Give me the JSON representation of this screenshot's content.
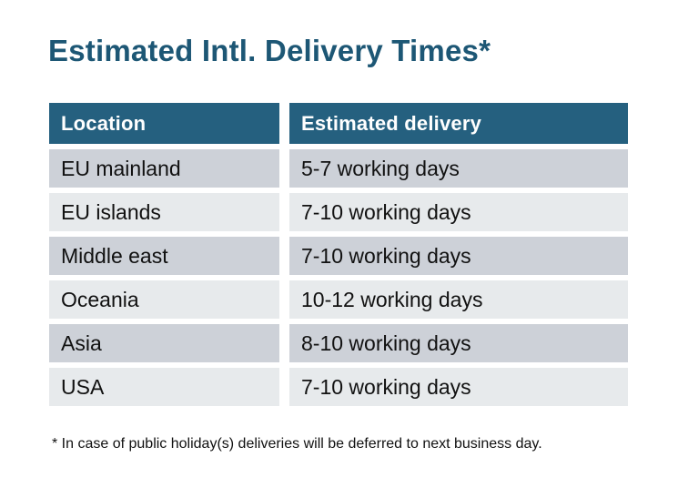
{
  "title": "Estimated Intl. Delivery Times*",
  "table": {
    "headers": [
      "Location",
      "Estimated delivery"
    ],
    "rows": [
      {
        "location": "EU mainland",
        "delivery": "5-7 working days"
      },
      {
        "location": "EU islands",
        "delivery": "7-10 working days"
      },
      {
        "location": "Middle east",
        "delivery": "7-10 working days"
      },
      {
        "location": "Oceania",
        "delivery": "10-12 working days"
      },
      {
        "location": "Asia",
        "delivery": "8-10 working days"
      },
      {
        "location": "USA",
        "delivery": "7-10 working days"
      }
    ]
  },
  "footnote": "* In case of public holiday(s) deliveries will be deferred to next business day.",
  "colors": {
    "title": "#1d5775",
    "header_bg": "#25607f",
    "header_text": "#ffffff",
    "row_odd": "#cdd1d8",
    "row_even": "#e7eaec",
    "body_text": "#111111"
  }
}
